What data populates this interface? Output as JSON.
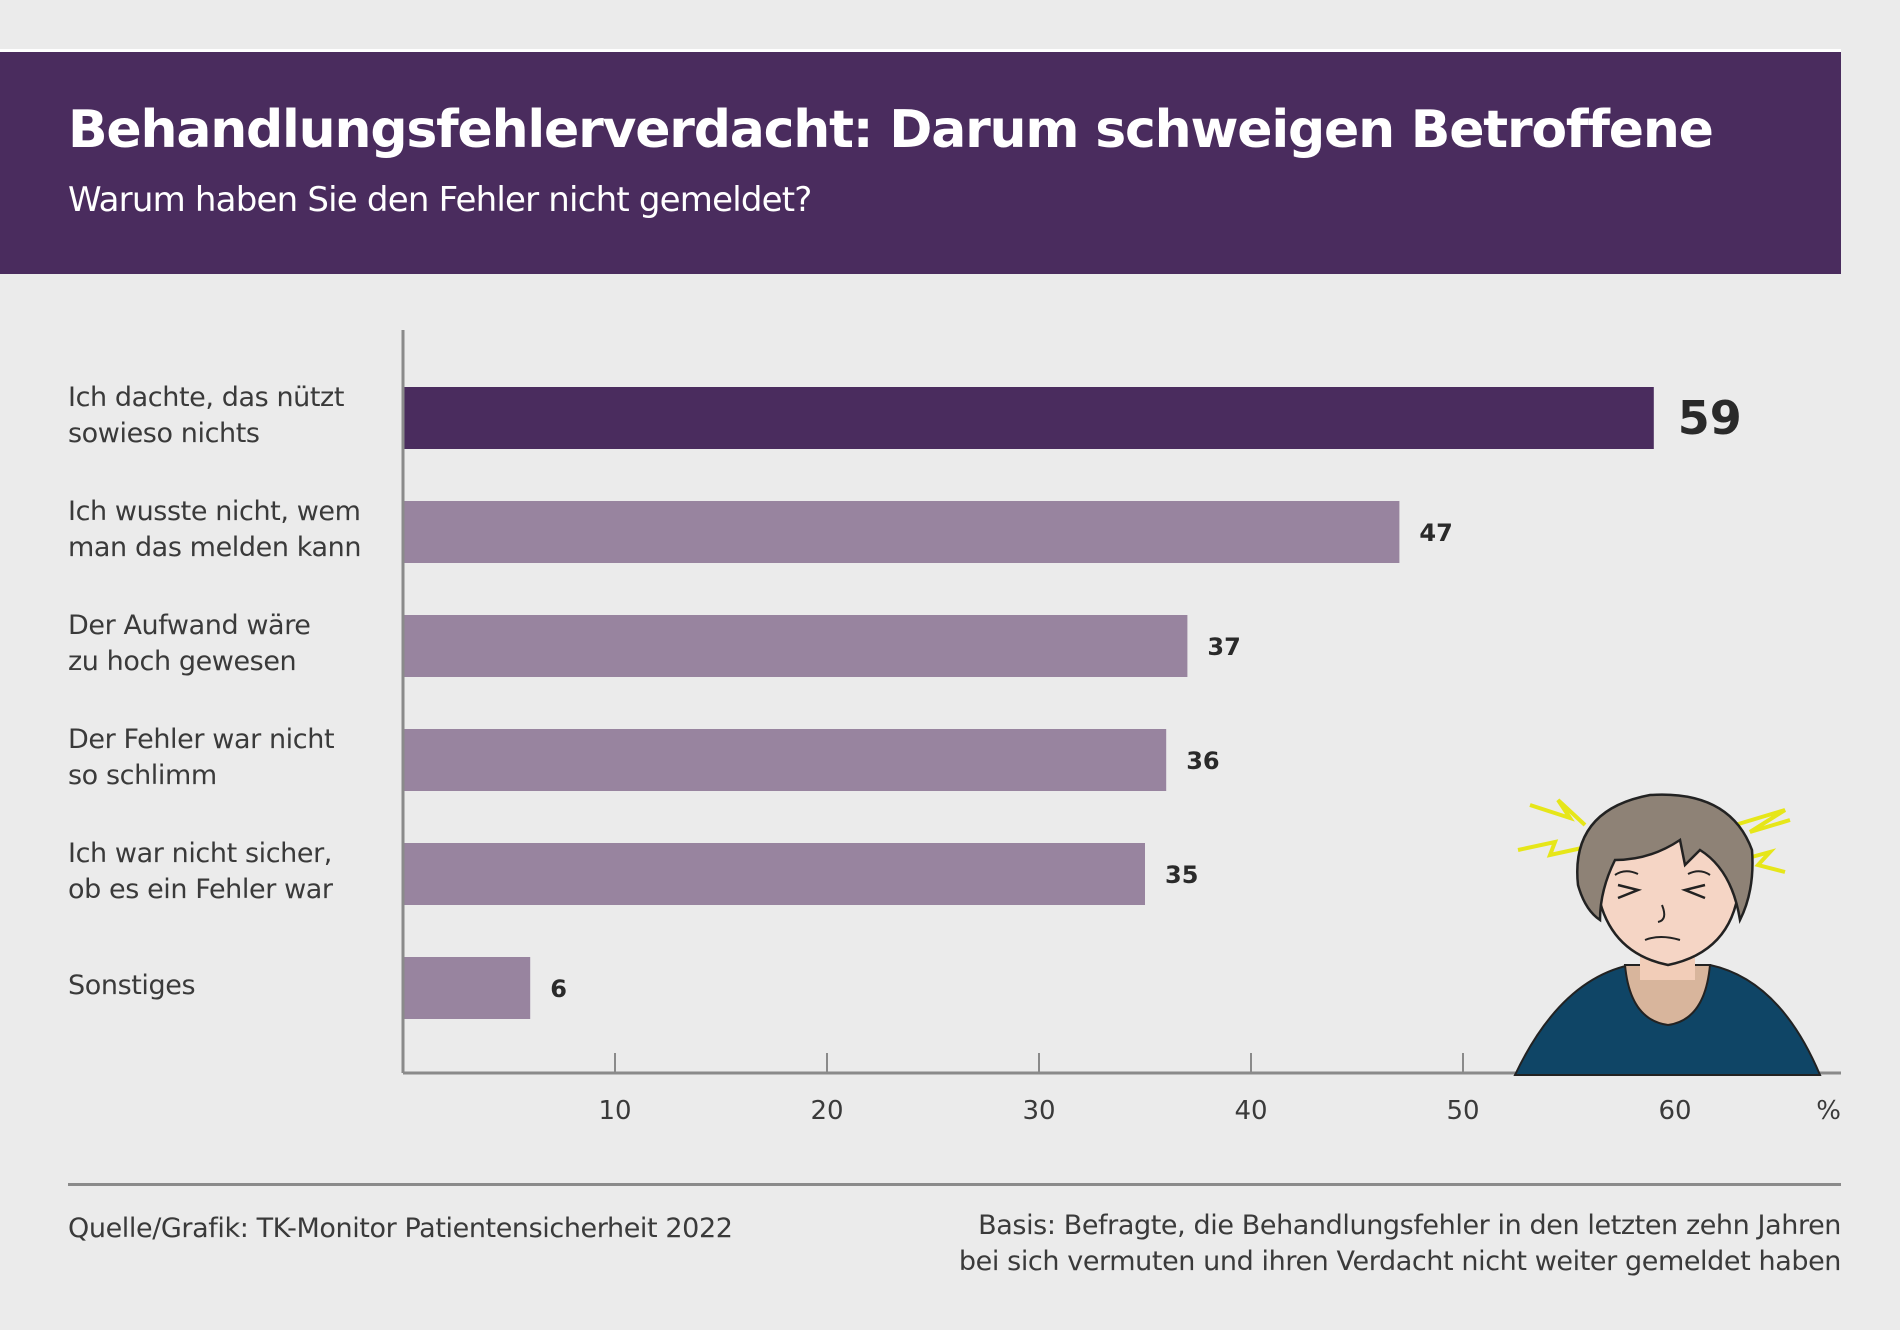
{
  "header": {
    "title": "Behandlungsfehlerverdacht: Darum schweigen Betroffene",
    "subtitle": "Warum haben Sie den Fehler nicht gemeldet?"
  },
  "colors": {
    "banner": "#4a2c5e",
    "highlight_bar": "#4a2c5e",
    "bar": "#98849f",
    "background": "#ebebeb"
  },
  "chart_data": {
    "type": "bar",
    "orientation": "horizontal",
    "title": "Behandlungsfehlerverdacht: Darum schweigen Betroffene",
    "subtitle": "Warum haben Sie den Fehler nicht gemeldet?",
    "categories": [
      "Ich dachte, das nützt\nsowieso nichts",
      "Ich wusste nicht, wem\nman das melden kann",
      "Der Aufwand wäre\nzu hoch gewesen",
      "Der Fehler war nicht\nso schlimm",
      "Ich war nicht sicher,\nob es ein Fehler war",
      "Sonstiges"
    ],
    "values": [
      59,
      47,
      37,
      36,
      35,
      6
    ],
    "value_labels": [
      "59",
      "47",
      "37",
      "36",
      "35",
      "6"
    ],
    "highlight_index": 0,
    "xlabel": "%",
    "ylabel": "",
    "xlim": [
      0,
      68
    ],
    "xticks": [
      10,
      20,
      30,
      40,
      50,
      60
    ],
    "xtick_labels": [
      "10",
      "20",
      "30",
      "40",
      "50",
      "60"
    ],
    "unit_label": "%",
    "grid": false,
    "legend": "none"
  },
  "illustration": {
    "icon": "headache-person-icon"
  },
  "footer": {
    "source": "Quelle/Grafik: TK-Monitor Patientensicherheit 2022",
    "basis": "Basis: Befragte, die Behandlungsfehler in den letzten zehn Jahren\nbei sich vermuten und ihren Verdacht nicht weiter gemeldet haben"
  }
}
